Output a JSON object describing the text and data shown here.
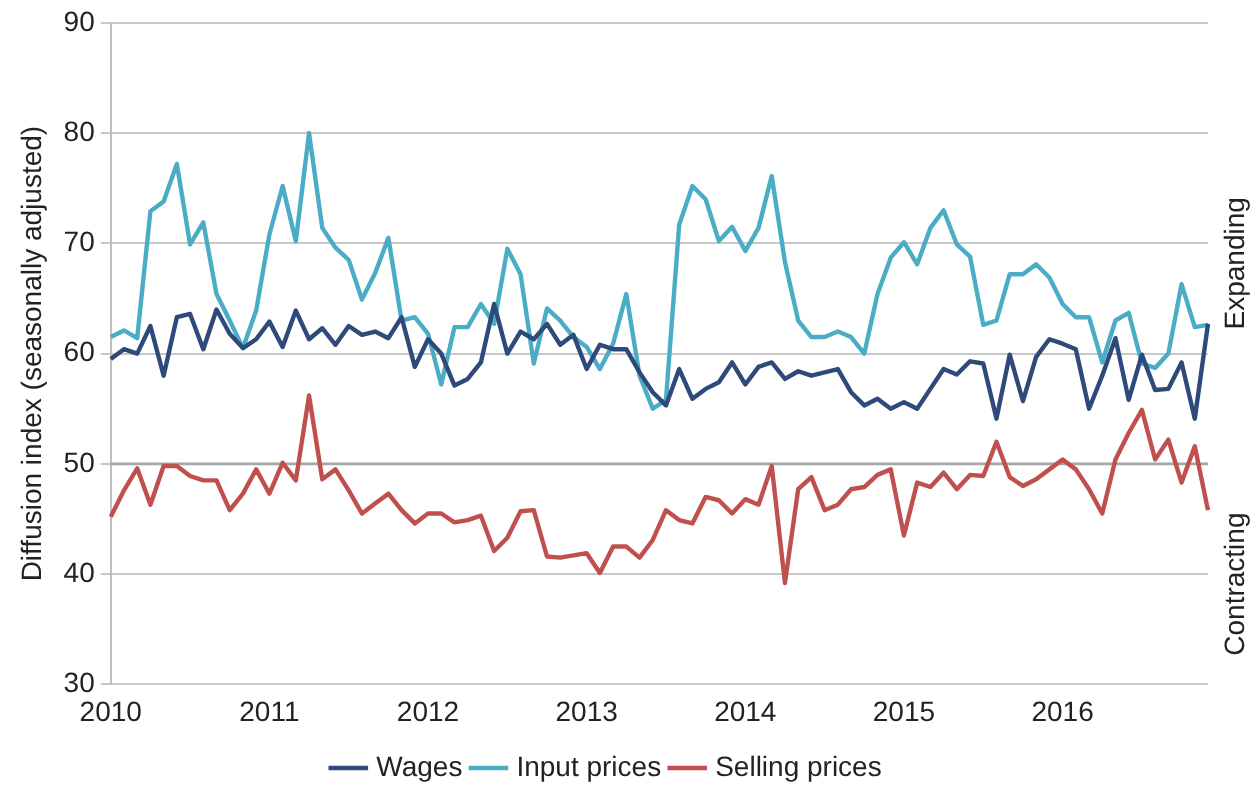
{
  "chart_data": {
    "type": "line",
    "ylabel": "Diffusion index (seasonally adjusted)",
    "categories": [
      "2010",
      null,
      null,
      null,
      null,
      null,
      null,
      null,
      null,
      null,
      null,
      null,
      "2011",
      null,
      null,
      null,
      null,
      null,
      null,
      null,
      null,
      null,
      null,
      null,
      "2012",
      null,
      null,
      null,
      null,
      null,
      null,
      null,
      null,
      null,
      null,
      null,
      "2013",
      null,
      null,
      null,
      null,
      null,
      null,
      null,
      null,
      null,
      null,
      null,
      "2014",
      null,
      null,
      null,
      null,
      null,
      null,
      null,
      null,
      null,
      null,
      null,
      "2015",
      null,
      null,
      null,
      null,
      null,
      null,
      null,
      null,
      null,
      null,
      null,
      "2016",
      null,
      null,
      null,
      null,
      null,
      null,
      null,
      null,
      null,
      null,
      null
    ],
    "series": [
      {
        "name": "Wages",
        "color": "#2e4a7a",
        "values": [
          59.5,
          60.4,
          60,
          62.5,
          58,
          63.3,
          63.6,
          60.4,
          64,
          61.8,
          60.5,
          61.3,
          62.9,
          60.6,
          63.9,
          61.3,
          62.3,
          60.8,
          62.5,
          61.7,
          62,
          61.4,
          63.3,
          58.8,
          61.3,
          60,
          57.1,
          57.7,
          59.2,
          64.5,
          60,
          62,
          61.3,
          62.7,
          60.8,
          61.7,
          58.6,
          60.8,
          60.4,
          60.4,
          58.3,
          56.5,
          55.3,
          58.6,
          55.9,
          56.8,
          57.4,
          59.2,
          57.2,
          58.8,
          59.2,
          57.7,
          58.4,
          58,
          58.3,
          58.6,
          56.5,
          55.3,
          55.9,
          55,
          55.6,
          55,
          56.8,
          58.6,
          58.1,
          59.3,
          59.1,
          54.1,
          59.9,
          55.7,
          59.7,
          61.3,
          60.9,
          60.4,
          55,
          58,
          61.4,
          55.8,
          59.9,
          56.7,
          56.8,
          59.2,
          54.1,
          62.7
        ]
      },
      {
        "name": "Input prices",
        "color": "#4bacc6",
        "values": [
          61.5,
          62.1,
          61.4,
          72.9,
          73.8,
          77.2,
          69.9,
          71.9,
          65.4,
          63,
          60.5,
          63.9,
          70.8,
          75.2,
          70.2,
          80,
          71.4,
          69.6,
          68.5,
          64.9,
          67.3,
          70.5,
          63,
          63.3,
          61.8,
          57.2,
          62.4,
          62.4,
          64.5,
          62.7,
          69.5,
          67.2,
          59.1,
          64.1,
          63,
          61.5,
          60.6,
          58.6,
          60.9,
          65.4,
          58,
          55,
          55.8,
          71.7,
          75.2,
          74,
          70.2,
          71.5,
          69.3,
          71.4,
          76.1,
          68.3,
          63,
          61.5,
          61.5,
          62,
          61.5,
          60,
          65.4,
          68.7,
          70.1,
          68.1,
          71.4,
          73,
          69.9,
          68.8,
          62.6,
          63,
          67.2,
          67.2,
          68.1,
          66.9,
          64.5,
          63.3,
          63.3,
          59.2,
          63,
          63.7,
          59.1,
          58.7,
          60,
          66.3,
          62.4,
          62.6
        ]
      },
      {
        "name": "Selling prices",
        "color": "#c0504d",
        "values": [
          45.2,
          47.6,
          49.6,
          46.3,
          49.8,
          49.8,
          48.9,
          48.5,
          48.5,
          45.8,
          47.3,
          49.5,
          47.3,
          50.1,
          48.5,
          56.2,
          48.6,
          49.5,
          47.6,
          45.5,
          46.4,
          47.3,
          45.8,
          44.6,
          45.5,
          45.5,
          44.7,
          44.9,
          45.3,
          42.1,
          43.3,
          45.7,
          45.8,
          41.6,
          41.5,
          41.7,
          41.9,
          40.1,
          42.5,
          42.5,
          41.5,
          43.1,
          45.8,
          44.9,
          44.6,
          47,
          46.7,
          45.5,
          46.8,
          46.3,
          49.8,
          39.2,
          47.7,
          48.8,
          45.8,
          46.3,
          47.7,
          47.9,
          49,
          49.5,
          43.5,
          48.3,
          47.9,
          49.2,
          47.7,
          49,
          48.9,
          52,
          48.8,
          48,
          48.6,
          49.5,
          50.4,
          49.5,
          47.7,
          45.5,
          50.4,
          52.8,
          54.9,
          50.4,
          52.2,
          48.3,
          51.6,
          45.8
        ]
      }
    ],
    "ylim": [
      30,
      90
    ],
    "yticks": [
      30,
      40,
      50,
      60,
      70,
      80,
      90
    ],
    "grid": "y",
    "ref_lines": [
      {
        "axis": "y",
        "value": 50,
        "color": "#a6a6a6"
      }
    ],
    "annotations": [
      "Expanding",
      "Contracting"
    ],
    "legend": "bottom",
    "marker": "none",
    "line_style": "solid"
  }
}
